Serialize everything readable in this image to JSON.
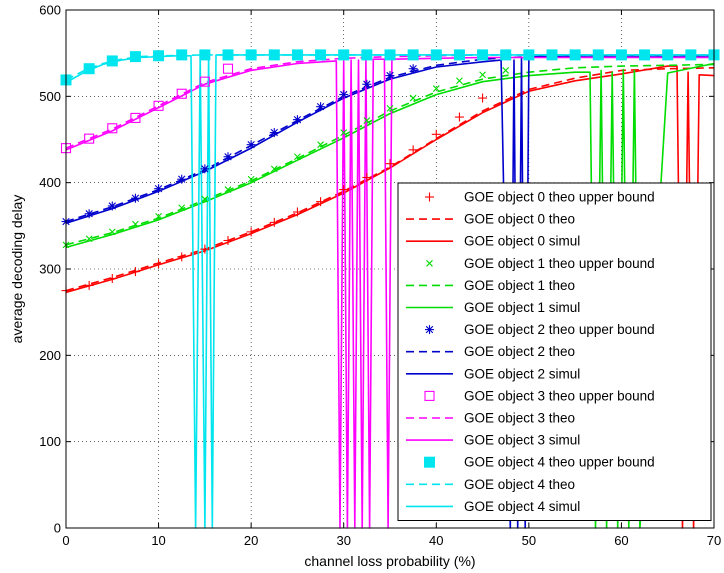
{
  "chart_data": {
    "type": "line",
    "title": "",
    "xlabel": "channel loss probability (%)",
    "ylabel": "average decoding delay",
    "xlim": [
      0,
      70
    ],
    "ylim": [
      0,
      600
    ],
    "xticks": [
      0,
      10,
      20,
      30,
      40,
      50,
      60,
      70
    ],
    "yticks": [
      0,
      100,
      200,
      300,
      400,
      500,
      600
    ],
    "grid": true,
    "legend_position": "bottom-right",
    "series": [
      {
        "name": "GOE object 0 theo upper bound",
        "color": "#ff0000",
        "style": "marker",
        "marker": "plus",
        "x": [
          0,
          2.5,
          5,
          7.5,
          10,
          12.5,
          15,
          17.5,
          20,
          22.5,
          25,
          27.5,
          30,
          32.5,
          35,
          37.5,
          40,
          42.5,
          45
        ],
        "y": [
          275,
          281,
          289,
          297,
          306,
          314,
          323,
          333,
          343,
          354,
          366,
          378,
          392,
          406,
          422,
          438,
          456,
          476,
          498
        ]
      },
      {
        "name": "GOE object 0 theo",
        "color": "#ff0000",
        "style": "dashed",
        "x": [
          0,
          5,
          10,
          15,
          20,
          25,
          30,
          35,
          40,
          45,
          50,
          55,
          60,
          65,
          70
        ],
        "y": [
          275,
          290,
          307,
          323,
          343,
          365,
          390,
          418,
          451,
          483,
          508,
          521,
          530,
          532,
          533
        ]
      },
      {
        "name": "GOE object 0 simul",
        "color": "#ff0000",
        "style": "solid",
        "x": [
          0,
          5,
          10,
          15,
          20,
          25,
          30,
          35,
          40,
          45,
          50,
          55,
          60,
          65,
          66,
          66.6,
          67.2,
          67.8,
          68.4,
          70
        ],
        "y": [
          273,
          288,
          305,
          321,
          341,
          363,
          388,
          417,
          450,
          481,
          506,
          518,
          526,
          535,
          535,
          0,
          528,
          0,
          525,
          524
        ]
      },
      {
        "name": "GOE object 1 theo upper bound",
        "color": "#00dd00",
        "style": "marker",
        "marker": "x",
        "x": [
          0,
          2.5,
          5,
          7.5,
          10,
          12.5,
          15,
          17.5,
          20,
          22.5,
          25,
          27.5,
          30,
          32.5,
          35,
          37.5,
          40,
          42.5,
          45,
          47.5
        ],
        "y": [
          328,
          335,
          343,
          352,
          361,
          371,
          381,
          392,
          404,
          416,
          430,
          444,
          458,
          472,
          486,
          498,
          509,
          518,
          525,
          530
        ]
      },
      {
        "name": "GOE object 1 theo",
        "color": "#00dd00",
        "style": "dashed",
        "x": [
          0,
          5,
          10,
          15,
          20,
          25,
          30,
          35,
          40,
          45,
          50,
          55,
          60,
          65,
          70
        ],
        "y": [
          328,
          342,
          359,
          380,
          402,
          428,
          455,
          483,
          505,
          520,
          528,
          533,
          535,
          536,
          537
        ]
      },
      {
        "name": "GOE object 1 simul",
        "color": "#00dd00",
        "style": "solid",
        "x": [
          0,
          5,
          10,
          15,
          20,
          25,
          30,
          35,
          40,
          45,
          50,
          55,
          56.6,
          57.2,
          57.8,
          58.4,
          59.0,
          59.6,
          60.2,
          60.8,
          61.4,
          62,
          65,
          70
        ],
        "y": [
          325,
          340,
          357,
          378,
          400,
          426,
          452,
          480,
          502,
          517,
          524,
          528,
          528,
          0,
          530,
          0,
          528,
          0,
          531,
          0,
          530,
          0,
          527,
          538
        ]
      },
      {
        "name": "GOE object 2 theo upper bound",
        "color": "#0000cc",
        "style": "marker",
        "marker": "asterisk",
        "x": [
          0,
          2.5,
          5,
          7.5,
          10,
          12.5,
          15,
          17.5,
          20,
          22.5,
          25,
          27.5,
          30,
          32.5,
          35,
          37.5
        ],
        "y": [
          355,
          364,
          373,
          382,
          393,
          404,
          416,
          430,
          444,
          458,
          473,
          488,
          502,
          514,
          524,
          532
        ]
      },
      {
        "name": "GOE object 2 theo",
        "color": "#0000cc",
        "style": "dashed",
        "x": [
          0,
          5,
          10,
          15,
          20,
          25,
          30,
          35,
          40,
          45,
          50,
          55,
          60,
          65,
          70
        ],
        "y": [
          355,
          372,
          392,
          415,
          443,
          472,
          500,
          522,
          536,
          543,
          546,
          547,
          547,
          547,
          547
        ]
      },
      {
        "name": "GOE object 2 simul",
        "color": "#0000cc",
        "style": "solid",
        "x": [
          0,
          5,
          10,
          15,
          20,
          25,
          30,
          35,
          40,
          45,
          47,
          48.0,
          48.4,
          48.8,
          49.2,
          49.6,
          50,
          55,
          60,
          65,
          70
        ],
        "y": [
          353,
          370,
          390,
          413,
          440,
          470,
          498,
          520,
          534,
          540,
          542,
          0,
          542,
          0,
          545,
          0,
          546,
          547,
          547,
          547,
          547
        ]
      },
      {
        "name": "GOE object 3 theo upper bound",
        "color": "#ff00ff",
        "style": "marker",
        "marker": "square-open",
        "x": [
          0,
          2.5,
          5,
          7.5,
          10,
          12.5,
          15,
          17.5
        ],
        "y": [
          440,
          451,
          463,
          475,
          489,
          503,
          517,
          532
        ]
      },
      {
        "name": "GOE object 3 theo",
        "color": "#ff00ff",
        "style": "dashed",
        "x": [
          0,
          5,
          10,
          15,
          20,
          25,
          30,
          35,
          40,
          45,
          50,
          55,
          60,
          65,
          70
        ],
        "y": [
          440,
          462,
          489,
          516,
          532,
          540,
          544,
          546,
          547,
          548,
          548,
          548,
          548,
          548,
          548
        ]
      },
      {
        "name": "GOE object 3 simul",
        "color": "#ff00ff",
        "style": "solid",
        "x": [
          0,
          5,
          10,
          15,
          20,
          25,
          29.2,
          29.6,
          30.0,
          30.4,
          30.8,
          31.2,
          31.6,
          32.0,
          32.4,
          32.8,
          33.2,
          34.4,
          34.8,
          35.2,
          40,
          45,
          50,
          55,
          60,
          65,
          70
        ],
        "y": [
          438,
          460,
          487,
          514,
          530,
          538,
          541,
          0,
          541,
          0,
          542,
          0,
          542,
          0,
          543,
          0,
          543,
          543,
          0,
          543,
          544,
          545,
          545,
          545,
          545,
          545,
          545
        ]
      },
      {
        "name": "GOE object 4 theo upper bound",
        "color": "#00e5ee",
        "style": "marker",
        "marker": "square-filled",
        "x": [
          0,
          2.5,
          5,
          7.5,
          10,
          12.5,
          15,
          17.5,
          20,
          22.5,
          25,
          27.5,
          30,
          32.5,
          35,
          37.5,
          40,
          42.5,
          45,
          47.5,
          50,
          52.5,
          55,
          57.5,
          60,
          62.5,
          65,
          67.5,
          70
        ],
        "y": [
          519,
          532,
          541,
          546,
          547,
          548,
          548,
          548,
          548,
          548,
          548,
          548,
          548,
          548,
          548,
          548,
          548,
          548,
          548,
          548,
          548,
          548,
          548,
          548,
          548,
          548,
          548,
          548,
          548
        ]
      },
      {
        "name": "GOE object 4 theo",
        "color": "#00e5ee",
        "style": "dashed",
        "x": [
          0,
          2,
          4,
          6,
          8,
          10,
          15,
          20,
          30,
          40,
          50,
          60,
          70
        ],
        "y": [
          519,
          530,
          538,
          543,
          546,
          547,
          548,
          548,
          548,
          548,
          548,
          548,
          548
        ]
      },
      {
        "name": "GOE object 4 simul",
        "color": "#00e5ee",
        "style": "solid",
        "x": [
          0,
          2,
          4,
          6,
          8,
          10,
          12,
          13.5,
          14.0,
          14.5,
          15.0,
          15.4,
          15.8,
          16.2,
          20,
          30,
          40,
          50,
          60,
          70
        ],
        "y": [
          516,
          528,
          537,
          542,
          545,
          546,
          547,
          547,
          0,
          547,
          0,
          547,
          0,
          548,
          548,
          548,
          548,
          548,
          548,
          548
        ]
      }
    ]
  }
}
